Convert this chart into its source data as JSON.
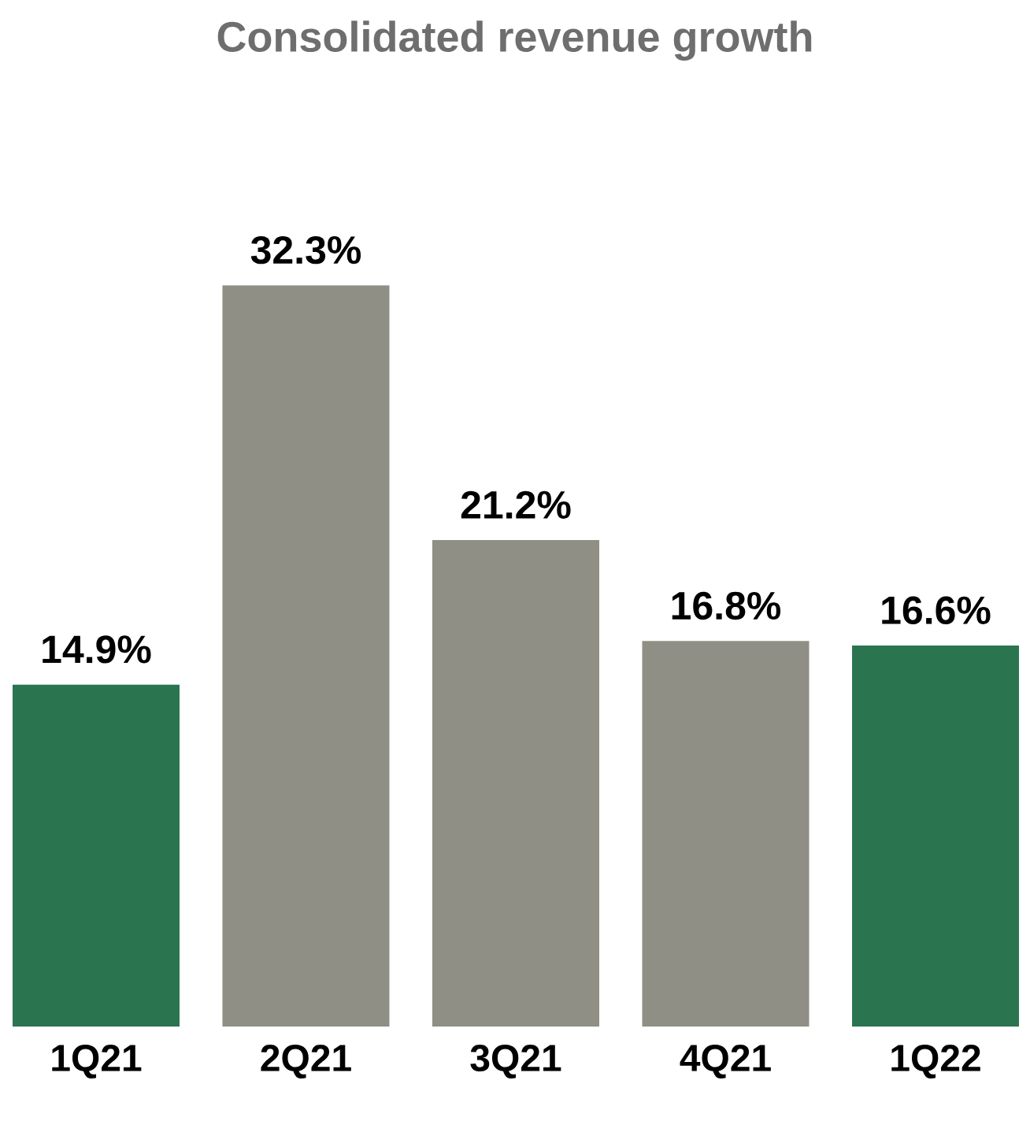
{
  "chart_data": {
    "type": "bar",
    "title": "Consolidated revenue growth",
    "categories": [
      "1Q21",
      "2Q21",
      "3Q21",
      "4Q21",
      "1Q22"
    ],
    "values": [
      14.9,
      32.3,
      21.2,
      16.8,
      16.6
    ],
    "value_labels": [
      "14.9%",
      "32.3%",
      "21.2%",
      "16.8%",
      "16.6%"
    ],
    "colors": [
      "#2a7550",
      "#8f8f85",
      "#8f8f85",
      "#8f8f85",
      "#2a7550"
    ],
    "tick_labels": "x"
  }
}
